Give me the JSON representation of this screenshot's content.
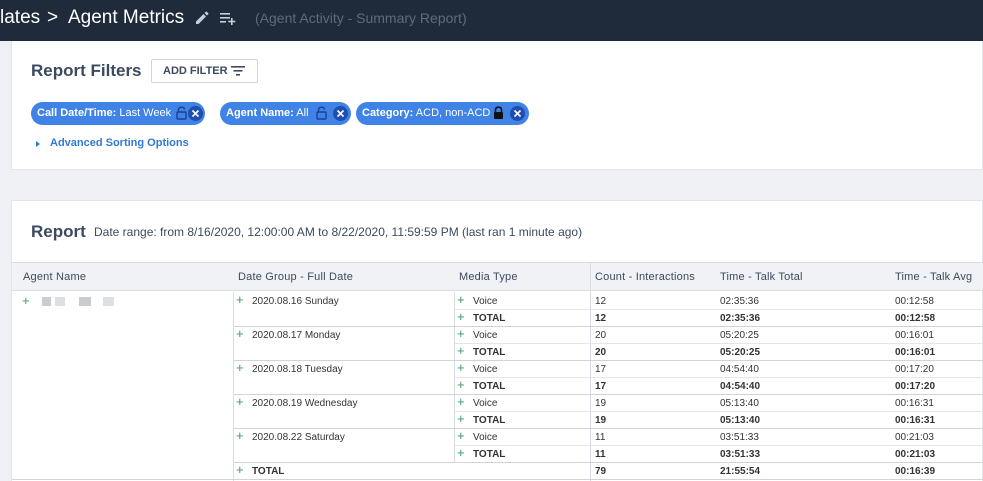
{
  "header": {
    "breadcrumb_parent": "lates",
    "breadcrumb_sep": ">",
    "title": "Agent Metrics",
    "subtitle": "(Agent Activity - Summary Report)"
  },
  "filters": {
    "title": "Report Filters",
    "add_filter_label": "ADD FILTER",
    "chips": [
      {
        "label": "Call Date/Time:",
        "value": " Last Week",
        "lock": "unlocked"
      },
      {
        "label": "Agent Name:",
        "value": " All",
        "lock": "unlocked"
      },
      {
        "label": "Category:",
        "value": " ACD, non-ACD",
        "lock": "locked"
      }
    ],
    "advanced_sorting_label": "Advanced Sorting Options"
  },
  "report": {
    "title": "Report",
    "date_range": "Date range: from 8/16/2020, 12:00:00 AM to 8/22/2020, 11:59:59 PM (last ran 1 minute ago)",
    "columns": [
      "Agent Name",
      "Date Group - Full Date",
      "Media Type",
      "Count - Interactions",
      "Time - Talk Total",
      "Time - Talk Avg"
    ],
    "groups": [
      {
        "date": "2020.08.16 Sunday",
        "voice": {
          "media": "Voice",
          "count": "12",
          "talk_total": "02:35:36",
          "talk_avg": "00:12:58"
        },
        "total": {
          "media": "TOTAL",
          "count": "12",
          "talk_total": "02:35:36",
          "talk_avg": "00:12:58"
        }
      },
      {
        "date": "2020.08.17 Monday",
        "voice": {
          "media": "Voice",
          "count": "20",
          "talk_total": "05:20:25",
          "talk_avg": "00:16:01"
        },
        "total": {
          "media": "TOTAL",
          "count": "20",
          "talk_total": "05:20:25",
          "talk_avg": "00:16:01"
        }
      },
      {
        "date": "2020.08.18 Tuesday",
        "voice": {
          "media": "Voice",
          "count": "17",
          "talk_total": "04:54:40",
          "talk_avg": "00:17:20"
        },
        "total": {
          "media": "TOTAL",
          "count": "17",
          "talk_total": "04:54:40",
          "talk_avg": "00:17:20"
        }
      },
      {
        "date": "2020.08.19 Wednesday",
        "voice": {
          "media": "Voice",
          "count": "19",
          "talk_total": "05:13:40",
          "talk_avg": "00:16:31"
        },
        "total": {
          "media": "TOTAL",
          "count": "19",
          "talk_total": "05:13:40",
          "talk_avg": "00:16:31"
        }
      },
      {
        "date": "2020.08.22 Saturday",
        "voice": {
          "media": "Voice",
          "count": "11",
          "talk_total": "03:51:33",
          "talk_avg": "00:21:03"
        },
        "total": {
          "media": "TOTAL",
          "count": "11",
          "talk_total": "03:51:33",
          "talk_avg": "00:21:03"
        }
      }
    ],
    "grand_total": {
      "label": "TOTAL",
      "count": "79",
      "talk_total": "21:55:54",
      "talk_avg": "00:16:39"
    }
  },
  "colors": {
    "topbar": "#1f2a3b",
    "chip": "#3f83e6",
    "link": "#2f7ad6",
    "plus": "#3a9a66"
  }
}
